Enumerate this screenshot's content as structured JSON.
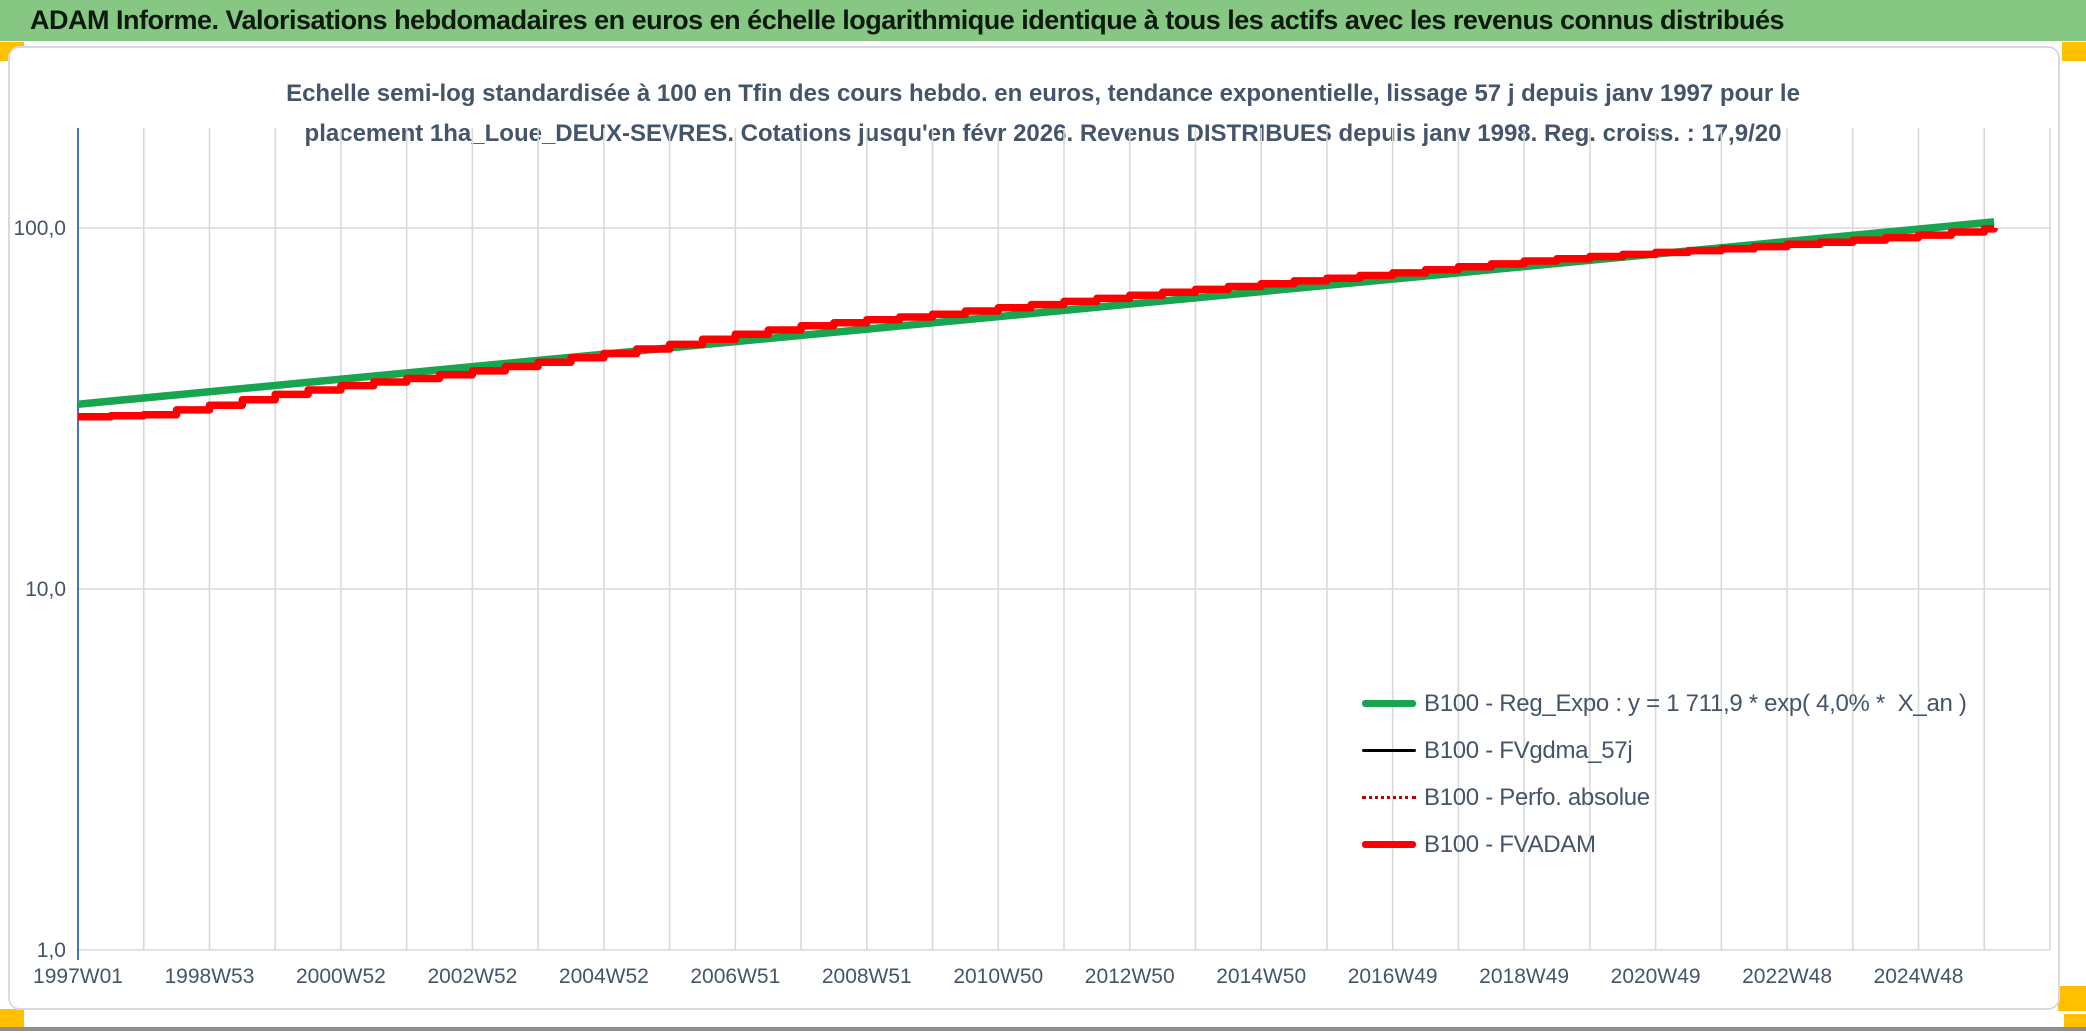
{
  "header": {
    "title": "ADAM Informe. Valorisations hebdomadaires en euros en échelle logarithmique identique à tous les actifs avec les revenus connus distribués"
  },
  "chart": {
    "title_line1": "Echelle semi-log standardisée à 100 en Tfin des cours hebdo. en euros, tendance exponentielle, lissage 57 j depuis janv 1997 pour le",
    "title_line2": "placement 1ha_Loue_DEUX-SEVRES. Cotations jusqu'en févr 2026. Revenus DISTRIBUES depuis janv 1998. Reg. croiss. : 17,9/20"
  },
  "colors": {
    "header_green": "#85C783",
    "handle_gold": "#FFC000",
    "axis_blue": "#4472C4",
    "grid_gray": "#D9D9D9",
    "text_blue_gray": "#44546A"
  },
  "chart_data": {
    "type": "line",
    "title": "Echelle semi-log standardisée à 100 en Tfin des cours hebdo. en euros, tendance exponentielle, lissage 57 j depuis janv 1997 pour le placement 1ha_Loue_DEUX-SEVRES. Cotations jusqu'en févr 2026. Revenus DISTRIBUES depuis janv 1998. Reg. croiss. : 17,9/20",
    "x_axis": {
      "labels": [
        "1997W01",
        "1998W53",
        "2000W52",
        "2002W52",
        "2004W52",
        "2006W51",
        "2008W51",
        "2010W50",
        "2012W50",
        "2014W50",
        "2016W49",
        "2018W49",
        "2020W49",
        "2022W48",
        "2024W48"
      ],
      "label_every_years": 2,
      "grid_every_years": 1,
      "range_years": [
        1997,
        2027
      ]
    },
    "y_axis": {
      "scale": "log",
      "tick_labels": [
        "100,0",
        "10,0",
        "1,0"
      ],
      "tick_values": [
        100,
        10,
        1
      ],
      "range": [
        1,
        186
      ]
    },
    "legend_position": "inside-right",
    "grid": true,
    "series": [
      {
        "label": "B100 - Reg_Expo : y = 1 711,9 * exp( 4,0% *  X_an )",
        "color": "#17A550",
        "style": "solid-thick",
        "interpolation": "exponential",
        "x": [
          1997.0,
          2026.15
        ],
        "values": [
          32.5,
          104.0
        ]
      },
      {
        "label": "B100 - FVgdma_57j",
        "color": "#000000",
        "style": "solid-thin",
        "interpolation": "step",
        "x": [
          1997,
          1998,
          1999,
          2000,
          2001,
          2002,
          2003,
          2004,
          2005,
          2006,
          2007,
          2008,
          2009,
          2010,
          2011,
          2012,
          2013,
          2014,
          2015,
          2016,
          2017,
          2018,
          2019,
          2020,
          2021,
          2022,
          2023,
          2024,
          2025,
          2026.15
        ],
        "values": [
          30.0,
          30.4,
          32.3,
          34.6,
          36.6,
          38.3,
          40.2,
          42.5,
          44.9,
          47.6,
          50.8,
          53.6,
          55.7,
          57.7,
          60.1,
          62.6,
          65.1,
          67.6,
          70.1,
          72.6,
          75.1,
          78.1,
          81.0,
          83.4,
          85.6,
          87.6,
          90.1,
          92.6,
          95.6,
          100.0
        ]
      },
      {
        "label": "B100 - Perfo. absolue",
        "color": "#C00000",
        "style": "dotted",
        "interpolation": "step",
        "x": [
          1997,
          1998,
          1999,
          2000,
          2001,
          2002,
          2003,
          2004,
          2005,
          2006,
          2007,
          2008,
          2009,
          2010,
          2011,
          2012,
          2013,
          2014,
          2015,
          2016,
          2017,
          2018,
          2019,
          2020,
          2021,
          2022,
          2023,
          2024,
          2025,
          2026.15
        ],
        "values": [
          30.0,
          30.4,
          32.3,
          34.6,
          36.6,
          38.3,
          40.2,
          42.5,
          44.9,
          47.6,
          50.8,
          53.6,
          55.7,
          57.7,
          60.1,
          62.6,
          65.1,
          67.6,
          70.1,
          72.6,
          75.1,
          78.1,
          81.0,
          83.4,
          85.6,
          87.6,
          90.1,
          92.6,
          95.6,
          100.0
        ]
      },
      {
        "label": "B100 - FVADAM",
        "color": "#FF0000",
        "style": "solid-thick",
        "interpolation": "step",
        "x": [
          1997,
          1998,
          1999,
          2000,
          2001,
          2002,
          2003,
          2004,
          2005,
          2006,
          2007,
          2008,
          2009,
          2010,
          2011,
          2012,
          2013,
          2014,
          2015,
          2016,
          2017,
          2018,
          2019,
          2020,
          2021,
          2022,
          2023,
          2024,
          2025,
          2026.15
        ],
        "values": [
          30.0,
          30.4,
          32.3,
          34.6,
          36.6,
          38.3,
          40.2,
          42.5,
          44.9,
          47.6,
          50.8,
          53.6,
          55.7,
          57.7,
          60.1,
          62.6,
          65.1,
          67.6,
          70.1,
          72.6,
          75.1,
          78.1,
          81.0,
          83.4,
          85.6,
          87.6,
          90.1,
          92.6,
          95.6,
          100.0
        ]
      }
    ]
  }
}
